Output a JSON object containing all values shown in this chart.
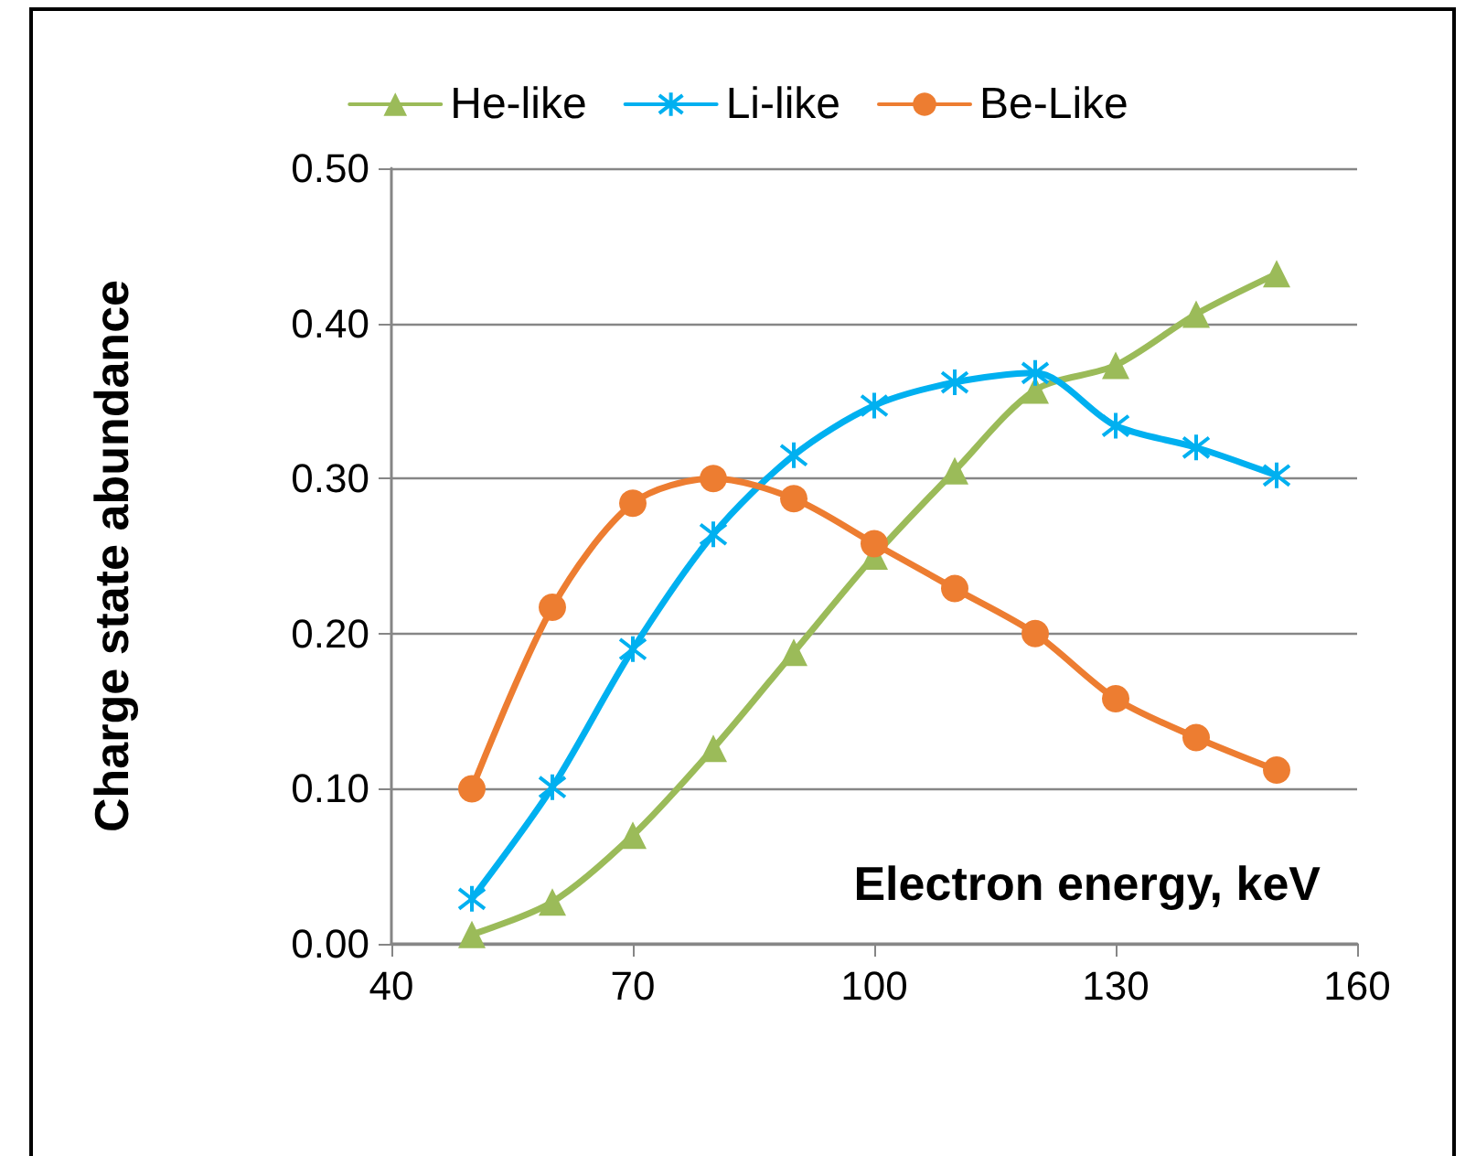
{
  "chart_data": {
    "type": "line",
    "xlabel": "Electron energy, keV",
    "ylabel": "Charge state abundance",
    "x": [
      50,
      60,
      70,
      80,
      90,
      100,
      110,
      120,
      130,
      140,
      150
    ],
    "series": [
      {
        "name": "He-like",
        "color": "#9bbb59",
        "marker": "triangle",
        "values": [
          0.006,
          0.027,
          0.07,
          0.126,
          0.188,
          0.25,
          0.305,
          0.357,
          0.373,
          0.406,
          0.432
        ]
      },
      {
        "name": "Li-like",
        "color": "#00b0f0",
        "marker": "cross",
        "values": [
          0.029,
          0.101,
          0.19,
          0.264,
          0.315,
          0.347,
          0.362,
          0.368,
          0.334,
          0.32,
          0.302
        ]
      },
      {
        "name": "Be-Like",
        "color": "#ed7d31",
        "marker": "circle",
        "values": [
          0.1,
          0.217,
          0.284,
          0.3,
          0.287,
          0.258,
          0.229,
          0.2,
          0.158,
          0.133,
          0.112
        ]
      }
    ],
    "xlim": [
      40,
      160
    ],
    "xticks": [
      40,
      70,
      100,
      130,
      160
    ],
    "ylim": [
      0,
      0.5
    ],
    "yticks": [
      {
        "value": 0,
        "label": "0.00"
      },
      {
        "value": 0.1,
        "label": "0.10"
      },
      {
        "value": 0.2,
        "label": "0.20"
      },
      {
        "value": 0.3,
        "label": "0.30"
      },
      {
        "value": 0.4,
        "label": "0.40"
      },
      {
        "value": 0.5,
        "label": "0.50"
      }
    ],
    "grid": "y",
    "legend": "top",
    "line_style": "solid"
  }
}
